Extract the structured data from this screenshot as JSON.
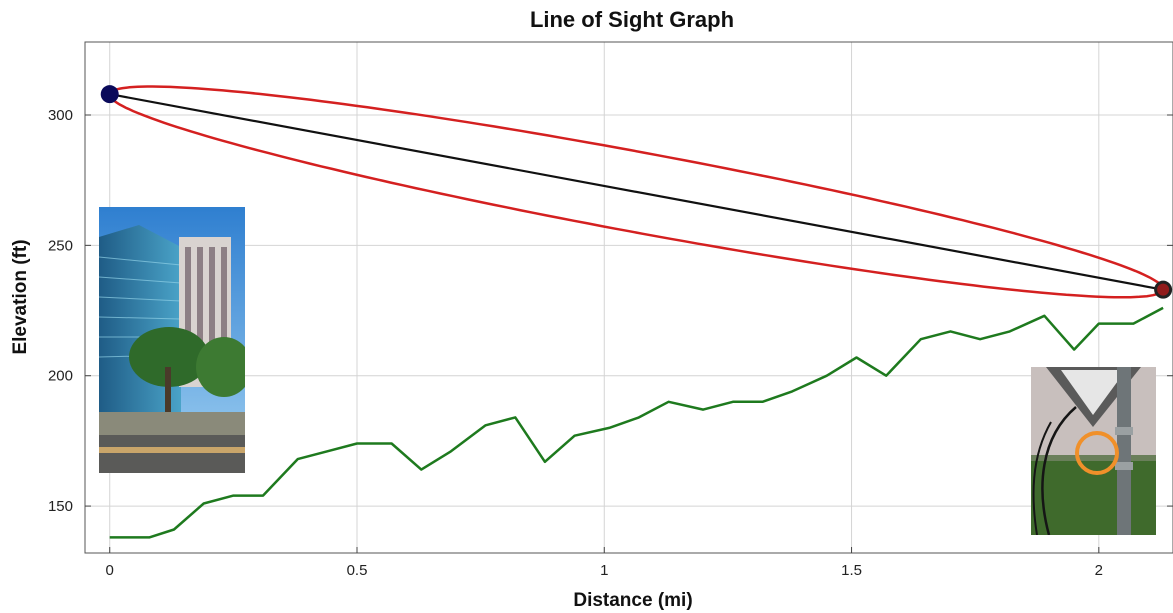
{
  "chart_data": {
    "type": "line",
    "title": "Line of Sight Graph",
    "xlabel": "Distance (mi)",
    "ylabel": "Elevation (ft)",
    "xlim": [
      -0.05,
      2.15
    ],
    "ylim": [
      132,
      328
    ],
    "x_ticks": [
      0,
      0.5,
      1,
      1.5,
      2
    ],
    "x_tick_labels": [
      "0",
      "0.5",
      "1",
      "1.5",
      "2"
    ],
    "y_ticks": [
      150,
      200,
      250,
      300
    ],
    "y_tick_labels": [
      "150",
      "200",
      "250",
      "300"
    ],
    "grid": true,
    "series": [
      {
        "role": "terrain",
        "color": "#1e7a1e",
        "x": [
          0,
          0.06,
          0.08,
          0.13,
          0.19,
          0.25,
          0.31,
          0.38,
          0.44,
          0.5,
          0.57,
          0.63,
          0.69,
          0.76,
          0.82,
          0.88,
          0.94,
          1.01,
          1.07,
          1.13,
          1.2,
          1.26,
          1.32,
          1.38,
          1.45,
          1.51,
          1.57,
          1.64,
          1.7,
          1.76,
          1.82,
          1.89,
          1.95,
          2.0,
          2.07,
          2.13
        ],
        "y": [
          138,
          138,
          138,
          141,
          151,
          154,
          154,
          168,
          171,
          174,
          174,
          164,
          171,
          181,
          184,
          167,
          177,
          180,
          184,
          190,
          187,
          190,
          190,
          194,
          200,
          207,
          200,
          214,
          217,
          214,
          217,
          223,
          210,
          220,
          220,
          226
        ]
      },
      {
        "role": "line-of-sight",
        "color": "#111111",
        "x": [
          0,
          2.13
        ],
        "y": [
          308,
          233
        ]
      }
    ],
    "endpoints": [
      {
        "x": 0,
        "y": 308,
        "color": "#0a0a5a"
      },
      {
        "x": 2.13,
        "y": 233,
        "color": "#222222"
      }
    ],
    "fresnel_zone": {
      "color": "#d42020",
      "from": {
        "x": 0,
        "y": 308
      },
      "to": {
        "x": 2.13,
        "y": 233
      },
      "max_half_width_ft": 37
    }
  },
  "insets": {
    "left_photo": "building-photo",
    "right_photo": "field-pole-photo",
    "right_marker_color": "#f0902a"
  }
}
